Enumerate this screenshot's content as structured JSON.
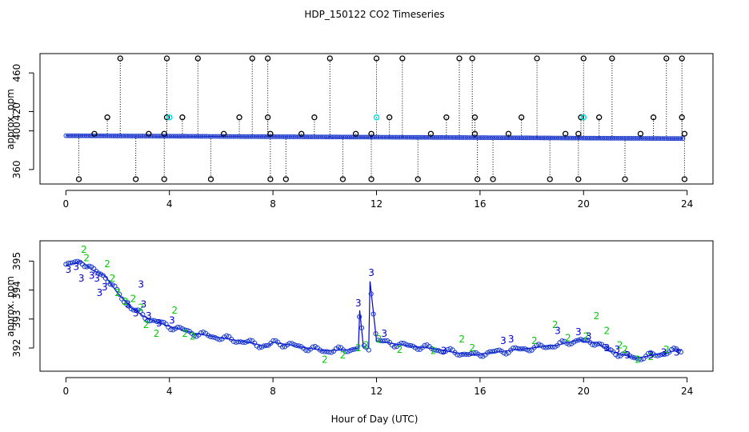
{
  "figure": {
    "title": "HDP_150122  CO2 Timeseries",
    "xlabel": "Hour of Day (UTC)"
  },
  "colors": {
    "outlier_points": "#000000",
    "cyan_points": "#00e0e0",
    "series_line": "#0000cc",
    "series_points": "#1a3acc",
    "label_2": "#00cc00",
    "label_3": "#0000cc"
  },
  "chart_data": [
    {
      "type": "scatter",
      "panel": "top",
      "ylabel": "approx. ppm",
      "xlim": [
        -1,
        25
      ],
      "ylim": [
        345,
        480
      ],
      "xticks": [
        0,
        4,
        8,
        12,
        16,
        20,
        24
      ],
      "yticks": [
        360,
        400,
        420,
        460
      ],
      "baseline": {
        "start": 395,
        "end": 392
      },
      "outliers": [
        {
          "x": 0.5,
          "y": 350
        },
        {
          "x": 1.1,
          "y": 397
        },
        {
          "x": 1.6,
          "y": 414
        },
        {
          "x": 2.1,
          "y": 475
        },
        {
          "x": 2.7,
          "y": 350
        },
        {
          "x": 3.2,
          "y": 397
        },
        {
          "x": 3.8,
          "y": 350
        },
        {
          "x": 3.8,
          "y": 397
        },
        {
          "x": 3.9,
          "y": 414
        },
        {
          "x": 3.9,
          "y": 475
        },
        {
          "x": 4.5,
          "y": 414
        },
        {
          "x": 5.1,
          "y": 475
        },
        {
          "x": 5.6,
          "y": 350
        },
        {
          "x": 6.1,
          "y": 397
        },
        {
          "x": 6.7,
          "y": 414
        },
        {
          "x": 7.2,
          "y": 475
        },
        {
          "x": 7.8,
          "y": 475
        },
        {
          "x": 7.8,
          "y": 414
        },
        {
          "x": 7.9,
          "y": 397
        },
        {
          "x": 7.9,
          "y": 350
        },
        {
          "x": 8.5,
          "y": 350
        },
        {
          "x": 9.1,
          "y": 397
        },
        {
          "x": 9.6,
          "y": 414
        },
        {
          "x": 10.2,
          "y": 475
        },
        {
          "x": 10.7,
          "y": 350
        },
        {
          "x": 11.2,
          "y": 397
        },
        {
          "x": 11.8,
          "y": 350
        },
        {
          "x": 11.8,
          "y": 397
        },
        {
          "x": 12.0,
          "y": 475
        },
        {
          "x": 12.5,
          "y": 414
        },
        {
          "x": 13.0,
          "y": 475
        },
        {
          "x": 13.6,
          "y": 350
        },
        {
          "x": 14.1,
          "y": 397
        },
        {
          "x": 14.7,
          "y": 414
        },
        {
          "x": 15.2,
          "y": 475
        },
        {
          "x": 15.7,
          "y": 475
        },
        {
          "x": 15.8,
          "y": 414
        },
        {
          "x": 15.8,
          "y": 397
        },
        {
          "x": 15.9,
          "y": 350
        },
        {
          "x": 16.5,
          "y": 350
        },
        {
          "x": 17.1,
          "y": 397
        },
        {
          "x": 17.6,
          "y": 414
        },
        {
          "x": 18.2,
          "y": 475
        },
        {
          "x": 18.7,
          "y": 350
        },
        {
          "x": 19.3,
          "y": 397
        },
        {
          "x": 19.8,
          "y": 350
        },
        {
          "x": 19.8,
          "y": 397
        },
        {
          "x": 19.9,
          "y": 414
        },
        {
          "x": 20.0,
          "y": 475
        },
        {
          "x": 20.6,
          "y": 414
        },
        {
          "x": 21.1,
          "y": 475
        },
        {
          "x": 21.6,
          "y": 350
        },
        {
          "x": 22.2,
          "y": 397
        },
        {
          "x": 22.7,
          "y": 414
        },
        {
          "x": 23.2,
          "y": 475
        },
        {
          "x": 23.8,
          "y": 475
        },
        {
          "x": 23.8,
          "y": 414
        },
        {
          "x": 23.9,
          "y": 397
        },
        {
          "x": 23.9,
          "y": 350
        }
      ],
      "cyan_points": [
        {
          "x": 4.0,
          "y": 414
        },
        {
          "x": 12.0,
          "y": 414
        },
        {
          "x": 20.0,
          "y": 414
        }
      ]
    },
    {
      "type": "line",
      "panel": "bottom",
      "ylabel": "approx. ppm",
      "xlim": [
        -1,
        25
      ],
      "ylim": [
        391.2,
        395.7
      ],
      "xticks": [
        0,
        4,
        8,
        12,
        16,
        20,
        24
      ],
      "yticks": [
        392,
        393,
        394,
        395
      ],
      "profile": [
        [
          0,
          394.85
        ],
        [
          0.6,
          395.0
        ],
        [
          1.0,
          394.7
        ],
        [
          1.5,
          394.5
        ],
        [
          2.0,
          393.9
        ],
        [
          2.5,
          393.4
        ],
        [
          3.0,
          393.1
        ],
        [
          3.5,
          392.9
        ],
        [
          4.0,
          392.75
        ],
        [
          5.0,
          392.5
        ],
        [
          6.0,
          392.35
        ],
        [
          7.0,
          392.2
        ],
        [
          7.8,
          392.05
        ],
        [
          8.0,
          392.2
        ],
        [
          9.0,
          392.05
        ],
        [
          10.0,
          391.9
        ],
        [
          11.0,
          391.95
        ],
        [
          11.3,
          392.0
        ],
        [
          11.35,
          393.3
        ],
        [
          11.5,
          392.0
        ],
        [
          11.7,
          392.0
        ],
        [
          11.75,
          394.3
        ],
        [
          12.0,
          392.25
        ],
        [
          13.0,
          392.1
        ],
        [
          14.0,
          392.0
        ],
        [
          15.0,
          391.85
        ],
        [
          15.8,
          391.75
        ],
        [
          16.0,
          391.8
        ],
        [
          17.0,
          391.9
        ],
        [
          18.0,
          392.0
        ],
        [
          19.0,
          392.1
        ],
        [
          19.9,
          392.3
        ],
        [
          20.0,
          392.2
        ],
        [
          20.5,
          392.2
        ],
        [
          21.0,
          391.9
        ],
        [
          22.0,
          391.65
        ],
        [
          23.0,
          391.8
        ],
        [
          23.8,
          391.95
        ]
      ],
      "labels_2": [
        {
          "x": 0.7,
          "y": 395.4
        },
        {
          "x": 0.8,
          "y": 395.1
        },
        {
          "x": 1.6,
          "y": 394.9
        },
        {
          "x": 1.8,
          "y": 394.4
        },
        {
          "x": 2.0,
          "y": 393.9
        },
        {
          "x": 2.3,
          "y": 393.6
        },
        {
          "x": 2.6,
          "y": 393.7
        },
        {
          "x": 2.9,
          "y": 393.4
        },
        {
          "x": 3.1,
          "y": 392.8
        },
        {
          "x": 3.5,
          "y": 392.5
        },
        {
          "x": 4.2,
          "y": 393.3
        },
        {
          "x": 4.6,
          "y": 392.5
        },
        {
          "x": 4.9,
          "y": 392.4
        },
        {
          "x": 10.0,
          "y": 391.6
        },
        {
          "x": 10.7,
          "y": 391.75
        },
        {
          "x": 11.3,
          "y": 392.0
        },
        {
          "x": 11.6,
          "y": 392.1
        },
        {
          "x": 12.1,
          "y": 392.3
        },
        {
          "x": 12.9,
          "y": 391.95
        },
        {
          "x": 14.2,
          "y": 391.9
        },
        {
          "x": 15.3,
          "y": 392.3
        },
        {
          "x": 15.7,
          "y": 392.0
        },
        {
          "x": 18.1,
          "y": 392.25
        },
        {
          "x": 18.9,
          "y": 392.8
        },
        {
          "x": 19.4,
          "y": 392.35
        },
        {
          "x": 20.1,
          "y": 392.4
        },
        {
          "x": 20.5,
          "y": 393.1
        },
        {
          "x": 20.9,
          "y": 392.6
        },
        {
          "x": 21.4,
          "y": 392.1
        },
        {
          "x": 21.6,
          "y": 391.95
        },
        {
          "x": 22.1,
          "y": 391.6
        },
        {
          "x": 22.6,
          "y": 391.7
        },
        {
          "x": 23.2,
          "y": 391.95
        }
      ],
      "labels_3": [
        {
          "x": 0.1,
          "y": 394.7
        },
        {
          "x": 0.4,
          "y": 394.8
        },
        {
          "x": 0.6,
          "y": 394.4
        },
        {
          "x": 1.0,
          "y": 394.5
        },
        {
          "x": 1.2,
          "y": 394.4
        },
        {
          "x": 1.3,
          "y": 393.9
        },
        {
          "x": 1.5,
          "y": 394.1
        },
        {
          "x": 2.4,
          "y": 393.5
        },
        {
          "x": 2.7,
          "y": 393.2
        },
        {
          "x": 2.9,
          "y": 394.2
        },
        {
          "x": 3.0,
          "y": 393.5
        },
        {
          "x": 3.2,
          "y": 393.1
        },
        {
          "x": 3.6,
          "y": 392.85
        },
        {
          "x": 4.1,
          "y": 392.95
        },
        {
          "x": 11.3,
          "y": 393.55
        },
        {
          "x": 11.8,
          "y": 394.6
        },
        {
          "x": 12.3,
          "y": 392.5
        },
        {
          "x": 14.6,
          "y": 391.9
        },
        {
          "x": 16.9,
          "y": 392.25
        },
        {
          "x": 17.2,
          "y": 392.3
        },
        {
          "x": 19.0,
          "y": 392.6
        },
        {
          "x": 19.8,
          "y": 392.55
        },
        {
          "x": 20.2,
          "y": 392.4
        },
        {
          "x": 20.9,
          "y": 392.0
        },
        {
          "x": 21.3,
          "y": 391.95
        },
        {
          "x": 21.7,
          "y": 391.75
        },
        {
          "x": 22.6,
          "y": 391.75
        },
        {
          "x": 23.1,
          "y": 391.85
        },
        {
          "x": 23.6,
          "y": 391.85
        }
      ]
    }
  ]
}
